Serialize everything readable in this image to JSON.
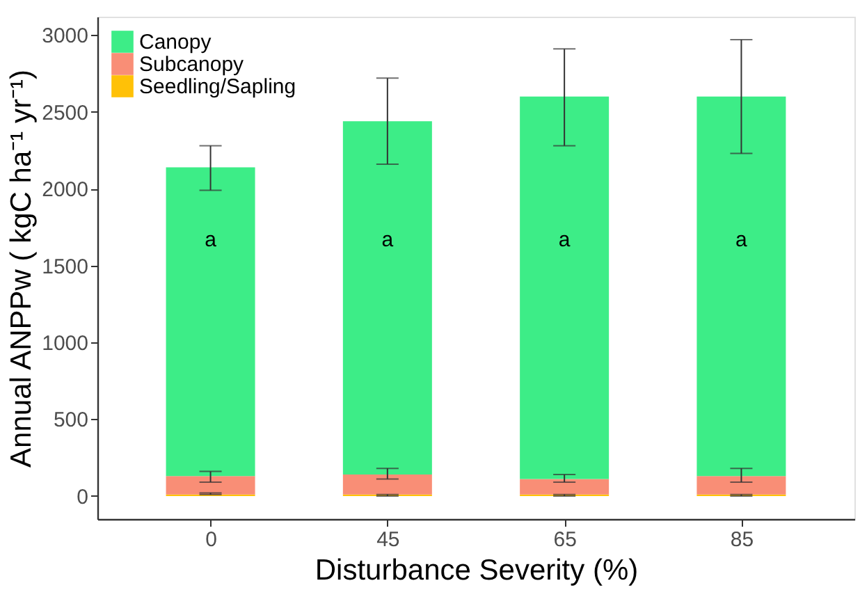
{
  "chart_data": {
    "type": "bar",
    "stacked": true,
    "xlabel": "Disturbance Severity (%)",
    "ylabel": "Annual ANPPw ( kgC ha⁻¹ yr⁻¹)",
    "categories": [
      "0",
      "45",
      "65",
      "85"
    ],
    "series": [
      {
        "name": "Seedling/Sapling",
        "color": "#ffc107",
        "values": [
          10,
          10,
          10,
          10
        ],
        "errors": [
          [
            10,
            20
          ],
          [
            0,
            10
          ],
          [
            0,
            10
          ],
          [
            0,
            10
          ]
        ]
      },
      {
        "name": "Subcanopy",
        "color": "#f98e76",
        "values": [
          120,
          130,
          100,
          120
        ],
        "errors": [
          [
            90,
            160
          ],
          [
            110,
            180
          ],
          [
            90,
            140
          ],
          [
            90,
            180
          ]
        ]
      },
      {
        "name": "Canopy",
        "color": "#3ded87",
        "values": [
          2010,
          2300,
          2490,
          2470
        ],
        "errors": [
          [
            1990,
            2280
          ],
          [
            2160,
            2720
          ],
          [
            2280,
            2910
          ],
          [
            2230,
            2970
          ]
        ]
      }
    ],
    "ylim": [
      -150,
      3120
    ],
    "yticks": [
      0,
      500,
      1000,
      1500,
      2000,
      2500,
      3000
    ],
    "grid": false,
    "legend": "top left",
    "annotations": [
      "a",
      "a",
      "a",
      "a"
    ]
  }
}
